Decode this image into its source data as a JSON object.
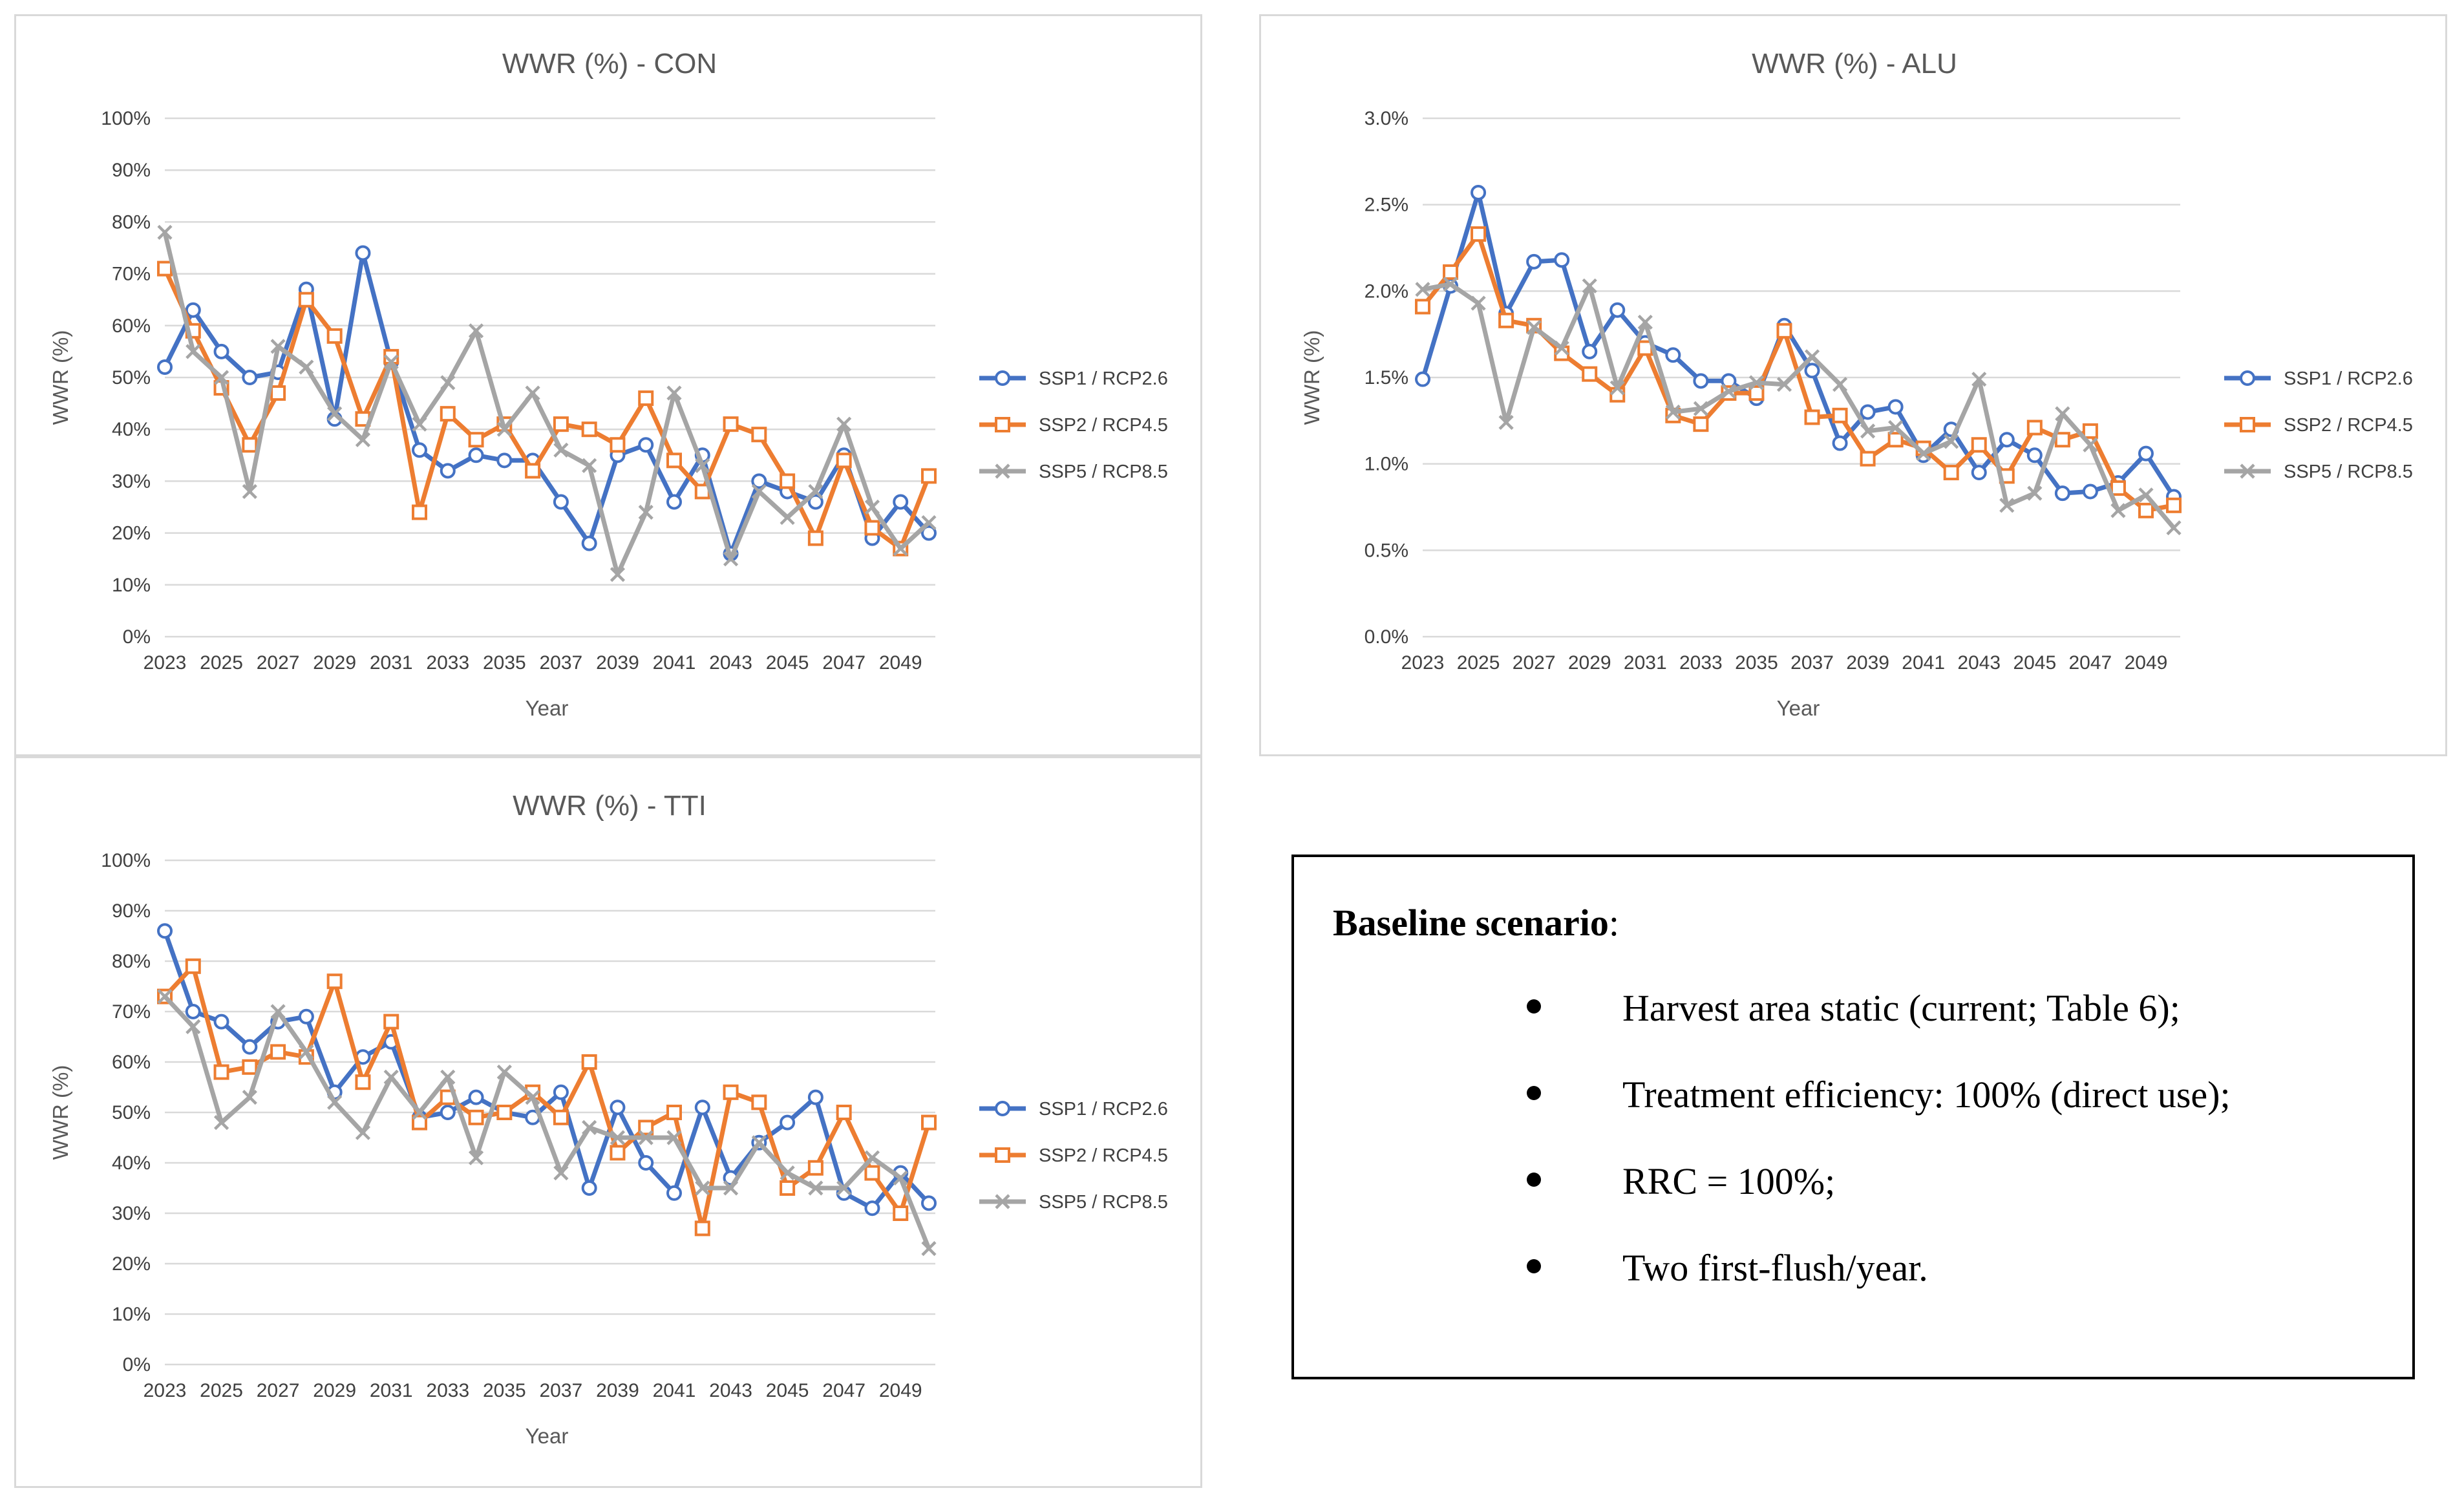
{
  "series_names": [
    "SSP1 / RCP2.6",
    "SSP2 / RCP4.5",
    "SSP5 / RCP8.5"
  ],
  "colors": {
    "SSP1 / RCP2.6": "#4472c4",
    "SSP2 / RCP4.5": "#ed7d31",
    "SSP5 / RCP8.5": "#a5a5a5"
  },
  "chart_data": [
    {
      "id": "con",
      "type": "line",
      "title": "WWR (%) - CON",
      "xlabel": "Year",
      "ylabel": "WWR (%)",
      "ylim": [
        0,
        100
      ],
      "y_tick_step": 10,
      "y_tick_decimals": 0,
      "grid": true,
      "legend_position": "right",
      "x": [
        2023,
        2024,
        2025,
        2026,
        2027,
        2028,
        2029,
        2030,
        2031,
        2032,
        2033,
        2034,
        2035,
        2036,
        2037,
        2038,
        2039,
        2040,
        2041,
        2042,
        2043,
        2044,
        2045,
        2046,
        2047,
        2048,
        2049,
        2050
      ],
      "x_tick_labels": [
        "2023",
        "2025",
        "2027",
        "2029",
        "2031",
        "2033",
        "2035",
        "2037",
        "2039",
        "2041",
        "2043",
        "2045",
        "2047",
        "2049"
      ],
      "series": [
        {
          "name": "SSP1 / RCP2.6",
          "values": [
            52,
            63,
            55,
            50,
            51,
            67,
            42,
            74,
            53,
            36,
            32,
            35,
            34,
            34,
            26,
            18,
            35,
            37,
            26,
            35,
            16,
            30,
            28,
            26,
            35,
            19,
            26,
            20
          ]
        },
        {
          "name": "SSP2 / RCP4.5",
          "values": [
            71,
            59,
            48,
            37,
            47,
            65,
            58,
            42,
            54,
            24,
            43,
            38,
            41,
            32,
            41,
            40,
            37,
            46,
            34,
            28,
            41,
            39,
            30,
            19,
            34,
            21,
            17,
            31
          ]
        },
        {
          "name": "SSP5 / RCP8.5",
          "values": [
            78,
            55,
            50,
            28,
            56,
            52,
            43,
            38,
            53,
            41,
            49,
            59,
            40,
            47,
            36,
            33,
            12,
            24,
            47,
            33,
            15,
            28,
            23,
            28,
            41,
            25,
            17,
            22
          ]
        }
      ]
    },
    {
      "id": "alu",
      "type": "line",
      "title": "WWR (%) - ALU",
      "xlabel": "Year",
      "ylabel": "WWR (%)",
      "ylim": [
        0,
        3.0
      ],
      "y_tick_step": 0.5,
      "y_tick_decimals": 1,
      "grid": true,
      "legend_position": "right",
      "x": [
        2023,
        2024,
        2025,
        2026,
        2027,
        2028,
        2029,
        2030,
        2031,
        2032,
        2033,
        2034,
        2035,
        2036,
        2037,
        2038,
        2039,
        2040,
        2041,
        2042,
        2043,
        2044,
        2045,
        2046,
        2047,
        2048,
        2049,
        2050
      ],
      "x_tick_labels": [
        "2023",
        "2025",
        "2027",
        "2029",
        "2031",
        "2033",
        "2035",
        "2037",
        "2039",
        "2041",
        "2043",
        "2045",
        "2047",
        "2049"
      ],
      "series": [
        {
          "name": "SSP1 / RCP2.6",
          "values": [
            1.49,
            2.03,
            2.57,
            1.87,
            2.17,
            2.18,
            1.65,
            1.89,
            1.7,
            1.63,
            1.48,
            1.48,
            1.38,
            1.8,
            1.54,
            1.12,
            1.3,
            1.33,
            1.05,
            1.2,
            0.95,
            1.14,
            1.05,
            0.83,
            0.84,
            0.89,
            1.06,
            0.81
          ]
        },
        {
          "name": "SSP2 / RCP4.5",
          "values": [
            1.91,
            2.11,
            2.33,
            1.83,
            1.8,
            1.64,
            1.52,
            1.4,
            1.67,
            1.28,
            1.23,
            1.41,
            1.41,
            1.77,
            1.27,
            1.28,
            1.03,
            1.14,
            1.09,
            0.95,
            1.11,
            0.93,
            1.21,
            1.14,
            1.19,
            0.86,
            0.73,
            0.76
          ]
        },
        {
          "name": "SSP5 / RCP8.5",
          "values": [
            2.01,
            2.04,
            1.93,
            1.24,
            1.79,
            1.67,
            2.03,
            1.44,
            1.82,
            1.3,
            1.32,
            1.42,
            1.47,
            1.46,
            1.62,
            1.46,
            1.19,
            1.21,
            1.06,
            1.13,
            1.49,
            0.76,
            0.83,
            1.29,
            1.11,
            0.73,
            0.82,
            0.63
          ]
        }
      ]
    },
    {
      "id": "tti",
      "type": "line",
      "title": "WWR (%) - TTI",
      "xlabel": "Year",
      "ylabel": "WWR (%)",
      "ylim": [
        0,
        100
      ],
      "y_tick_step": 10,
      "y_tick_decimals": 0,
      "grid": true,
      "legend_position": "right",
      "x": [
        2023,
        2024,
        2025,
        2026,
        2027,
        2028,
        2029,
        2030,
        2031,
        2032,
        2033,
        2034,
        2035,
        2036,
        2037,
        2038,
        2039,
        2040,
        2041,
        2042,
        2043,
        2044,
        2045,
        2046,
        2047,
        2048,
        2049,
        2050
      ],
      "x_tick_labels": [
        "2023",
        "2025",
        "2027",
        "2029",
        "2031",
        "2033",
        "2035",
        "2037",
        "2039",
        "2041",
        "2043",
        "2045",
        "2047",
        "2049"
      ],
      "series": [
        {
          "name": "SSP1 / RCP2.6",
          "values": [
            86,
            70,
            68,
            63,
            68,
            69,
            54,
            61,
            64,
            49,
            50,
            53,
            50,
            49,
            54,
            35,
            51,
            40,
            34,
            51,
            37,
            44,
            48,
            53,
            34,
            31,
            38,
            32
          ]
        },
        {
          "name": "SSP2 / RCP4.5",
          "values": [
            73,
            79,
            58,
            59,
            62,
            61,
            76,
            56,
            68,
            48,
            53,
            49,
            50,
            54,
            49,
            60,
            42,
            47,
            50,
            27,
            54,
            52,
            35,
            39,
            50,
            38,
            30,
            48
          ]
        },
        {
          "name": "SSP5 / RCP8.5",
          "values": [
            73,
            67,
            48,
            53,
            70,
            62,
            52,
            46,
            57,
            50,
            57,
            41,
            58,
            53,
            38,
            47,
            45,
            45,
            45,
            35,
            35,
            44,
            38,
            35,
            35,
            41,
            37,
            23
          ]
        }
      ]
    }
  ],
  "baseline": {
    "heading_bold": "Baseline scenario",
    "heading_colon": ":",
    "bullets": [
      "Harvest area static (current; Table 6);",
      "Treatment efficiency: 100% (direct use);",
      "RRC = 100%;",
      "Two first-flush/year."
    ]
  }
}
